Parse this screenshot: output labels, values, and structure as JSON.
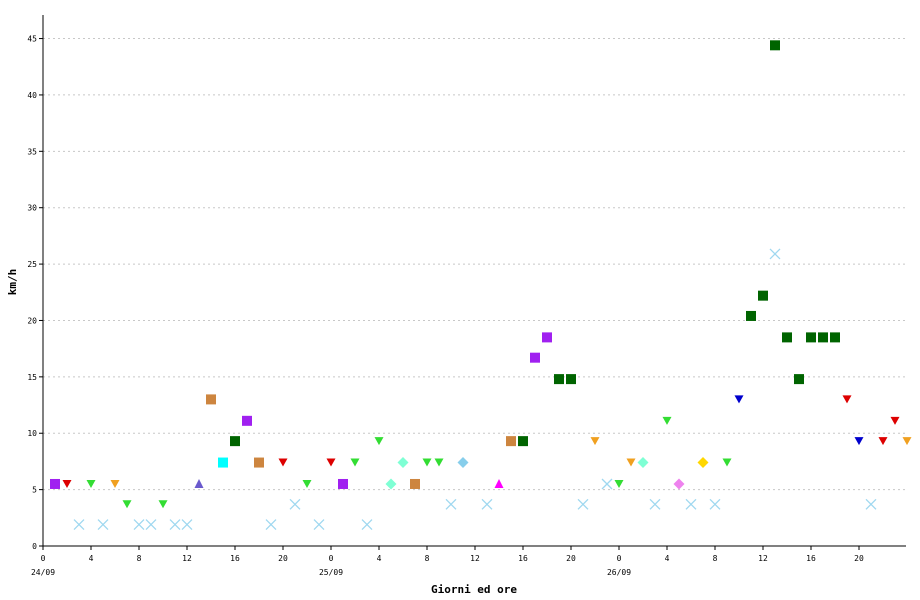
{
  "chart_data": {
    "type": "scatter",
    "title": "",
    "xlabel": "Giorni ed ore",
    "ylabel": "km/h",
    "xlim": [
      0,
      72
    ],
    "ylim": [
      0,
      47
    ],
    "y_ticks": [
      0,
      5,
      10,
      15,
      20,
      25,
      30,
      35,
      40,
      45
    ],
    "x_ticks": [
      {
        "h": 0,
        "label": "0"
      },
      {
        "h": 4,
        "label": "4"
      },
      {
        "h": 8,
        "label": "8"
      },
      {
        "h": 12,
        "label": "12"
      },
      {
        "h": 16,
        "label": "16"
      },
      {
        "h": 20,
        "label": "20"
      },
      {
        "h": 24,
        "label": "0"
      },
      {
        "h": 28,
        "label": "4"
      },
      {
        "h": 32,
        "label": "8"
      },
      {
        "h": 36,
        "label": "12"
      },
      {
        "h": 40,
        "label": "16"
      },
      {
        "h": 44,
        "label": "20"
      },
      {
        "h": 48,
        "label": "0"
      },
      {
        "h": 52,
        "label": "4"
      },
      {
        "h": 56,
        "label": "8"
      },
      {
        "h": 60,
        "label": "12"
      },
      {
        "h": 64,
        "label": "16"
      },
      {
        "h": 68,
        "label": "20"
      }
    ],
    "day_labels": [
      {
        "h": 0,
        "label": "24/09"
      },
      {
        "h": 24,
        "label": "25/09"
      },
      {
        "h": 48,
        "label": "26/09"
      }
    ],
    "grid": "horizontal dashed",
    "points": [
      {
        "h": 1,
        "y": 5.5,
        "m": "square",
        "c": "#a020f0"
      },
      {
        "h": 2,
        "y": 5.5,
        "m": "tri-down",
        "c": "#dd0000"
      },
      {
        "h": 3,
        "y": 1.9,
        "m": "x",
        "c": "#9fd8f0"
      },
      {
        "h": 4,
        "y": 5.5,
        "m": "tri-down",
        "c": "#33dd33"
      },
      {
        "h": 5,
        "y": 1.9,
        "m": "x",
        "c": "#9fd8f0"
      },
      {
        "h": 6,
        "y": 5.5,
        "m": "tri-down",
        "c": "#f0a020"
      },
      {
        "h": 7,
        "y": 3.7,
        "m": "tri-down",
        "c": "#33dd33"
      },
      {
        "h": 8,
        "y": 1.9,
        "m": "x",
        "c": "#9fd8f0"
      },
      {
        "h": 9,
        "y": 1.9,
        "m": "x",
        "c": "#9fd8f0"
      },
      {
        "h": 10,
        "y": 3.7,
        "m": "tri-down",
        "c": "#33dd33"
      },
      {
        "h": 11,
        "y": 1.9,
        "m": "x",
        "c": "#9fd8f0"
      },
      {
        "h": 12,
        "y": 1.9,
        "m": "x",
        "c": "#9fd8f0"
      },
      {
        "h": 13,
        "y": 5.5,
        "m": "tri-up",
        "c": "#6a5acd"
      },
      {
        "h": 14,
        "y": 13.0,
        "m": "square",
        "c": "#cd853f"
      },
      {
        "h": 15,
        "y": 7.4,
        "m": "square",
        "c": "#00ffff"
      },
      {
        "h": 16,
        "y": 9.3,
        "m": "square",
        "c": "#006400"
      },
      {
        "h": 17,
        "y": 11.1,
        "m": "square",
        "c": "#a020f0"
      },
      {
        "h": 18,
        "y": 7.4,
        "m": "square",
        "c": "#cd853f"
      },
      {
        "h": 19,
        "y": 1.9,
        "m": "x",
        "c": "#9fd8f0"
      },
      {
        "h": 20,
        "y": 7.4,
        "m": "tri-down",
        "c": "#dd0000"
      },
      {
        "h": 21,
        "y": 3.7,
        "m": "x",
        "c": "#9fd8f0"
      },
      {
        "h": 22,
        "y": 5.5,
        "m": "tri-down",
        "c": "#33dd33"
      },
      {
        "h": 23,
        "y": 1.9,
        "m": "x",
        "c": "#9fd8f0"
      },
      {
        "h": 24,
        "y": 7.4,
        "m": "tri-down",
        "c": "#dd0000"
      },
      {
        "h": 25,
        "y": 5.5,
        "m": "square",
        "c": "#a020f0"
      },
      {
        "h": 26,
        "y": 7.4,
        "m": "tri-down",
        "c": "#33dd33"
      },
      {
        "h": 27,
        "y": 1.9,
        "m": "x",
        "c": "#9fd8f0"
      },
      {
        "h": 28,
        "y": 9.3,
        "m": "tri-down",
        "c": "#33dd33"
      },
      {
        "h": 29,
        "y": 5.5,
        "m": "diamond",
        "c": "#7fffd4"
      },
      {
        "h": 30,
        "y": 7.4,
        "m": "diamond",
        "c": "#7fffd4"
      },
      {
        "h": 31,
        "y": 5.5,
        "m": "square",
        "c": "#cd853f"
      },
      {
        "h": 32,
        "y": 7.4,
        "m": "tri-down",
        "c": "#33dd33"
      },
      {
        "h": 33,
        "y": 7.4,
        "m": "tri-down",
        "c": "#33dd33"
      },
      {
        "h": 34,
        "y": 3.7,
        "m": "x",
        "c": "#9fd8f0"
      },
      {
        "h": 35,
        "y": 7.4,
        "m": "diamond",
        "c": "#87ceeb"
      },
      {
        "h": 37,
        "y": 3.7,
        "m": "x",
        "c": "#9fd8f0"
      },
      {
        "h": 38,
        "y": 5.5,
        "m": "tri-up",
        "c": "#ff00ff"
      },
      {
        "h": 39,
        "y": 9.3,
        "m": "square",
        "c": "#cd853f"
      },
      {
        "h": 40,
        "y": 9.3,
        "m": "square",
        "c": "#006400"
      },
      {
        "h": 41,
        "y": 16.7,
        "m": "square",
        "c": "#a020f0"
      },
      {
        "h": 42,
        "y": 18.5,
        "m": "square",
        "c": "#a020f0"
      },
      {
        "h": 43,
        "y": 14.8,
        "m": "square",
        "c": "#006400"
      },
      {
        "h": 44,
        "y": 14.8,
        "m": "square",
        "c": "#006400"
      },
      {
        "h": 45,
        "y": 3.7,
        "m": "x",
        "c": "#9fd8f0"
      },
      {
        "h": 46,
        "y": 9.3,
        "m": "tri-down",
        "c": "#f0a020"
      },
      {
        "h": 47,
        "y": 5.5,
        "m": "x",
        "c": "#9fd8f0"
      },
      {
        "h": 48,
        "y": 5.5,
        "m": "tri-down",
        "c": "#33dd33"
      },
      {
        "h": 49,
        "y": 7.4,
        "m": "tri-down",
        "c": "#f0a020"
      },
      {
        "h": 50,
        "y": 7.4,
        "m": "diamond",
        "c": "#7fffd4"
      },
      {
        "h": 51,
        "y": 3.7,
        "m": "x",
        "c": "#9fd8f0"
      },
      {
        "h": 52,
        "y": 11.1,
        "m": "tri-down",
        "c": "#33dd33"
      },
      {
        "h": 53,
        "y": 5.5,
        "m": "diamond",
        "c": "#ee82ee"
      },
      {
        "h": 54,
        "y": 3.7,
        "m": "x",
        "c": "#9fd8f0"
      },
      {
        "h": 55,
        "y": 7.4,
        "m": "diamond",
        "c": "#ffd700"
      },
      {
        "h": 56,
        "y": 3.7,
        "m": "x",
        "c": "#9fd8f0"
      },
      {
        "h": 57,
        "y": 7.4,
        "m": "tri-down",
        "c": "#33dd33"
      },
      {
        "h": 58,
        "y": 13.0,
        "m": "tri-down",
        "c": "#0000cd"
      },
      {
        "h": 59,
        "y": 20.4,
        "m": "square",
        "c": "#006400"
      },
      {
        "h": 60,
        "y": 22.2,
        "m": "square",
        "c": "#006400"
      },
      {
        "h": 61,
        "y": 44.4,
        "m": "square",
        "c": "#006400"
      },
      {
        "h": 61,
        "y": 25.9,
        "m": "x",
        "c": "#9fd8f0"
      },
      {
        "h": 62,
        "y": 18.5,
        "m": "square",
        "c": "#006400"
      },
      {
        "h": 63,
        "y": 14.8,
        "m": "square",
        "c": "#006400"
      },
      {
        "h": 64,
        "y": 18.5,
        "m": "square",
        "c": "#006400"
      },
      {
        "h": 65,
        "y": 18.5,
        "m": "square",
        "c": "#006400"
      },
      {
        "h": 66,
        "y": 18.5,
        "m": "square",
        "c": "#006400"
      },
      {
        "h": 67,
        "y": 13.0,
        "m": "tri-down",
        "c": "#dd0000"
      },
      {
        "h": 68,
        "y": 9.3,
        "m": "tri-down",
        "c": "#0000cd"
      },
      {
        "h": 69,
        "y": 3.7,
        "m": "x",
        "c": "#9fd8f0"
      },
      {
        "h": 70,
        "y": 9.3,
        "m": "tri-down",
        "c": "#dd0000"
      },
      {
        "h": 71,
        "y": 11.1,
        "m": "tri-down",
        "c": "#dd0000"
      },
      {
        "h": 72,
        "y": 9.3,
        "m": "tri-down",
        "c": "#f0a020"
      }
    ]
  }
}
